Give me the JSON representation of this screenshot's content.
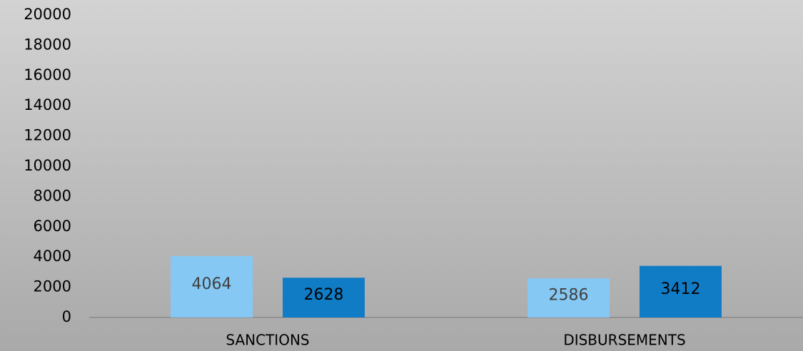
{
  "chart_data": {
    "type": "bar",
    "categories": [
      "SANCTIONS",
      "DISBURSEMENTS"
    ],
    "series": [
      {
        "color": "#85c8f3",
        "values": [
          4064,
          2586
        ]
      },
      {
        "color": "#117cc6",
        "values": [
          2628,
          3412
        ]
      }
    ],
    "ylim": [
      0,
      20000
    ],
    "yticks": [
      0,
      2000,
      4000,
      6000,
      8000,
      10000,
      12000,
      14000,
      16000,
      18000,
      20000
    ],
    "grid": false
  }
}
